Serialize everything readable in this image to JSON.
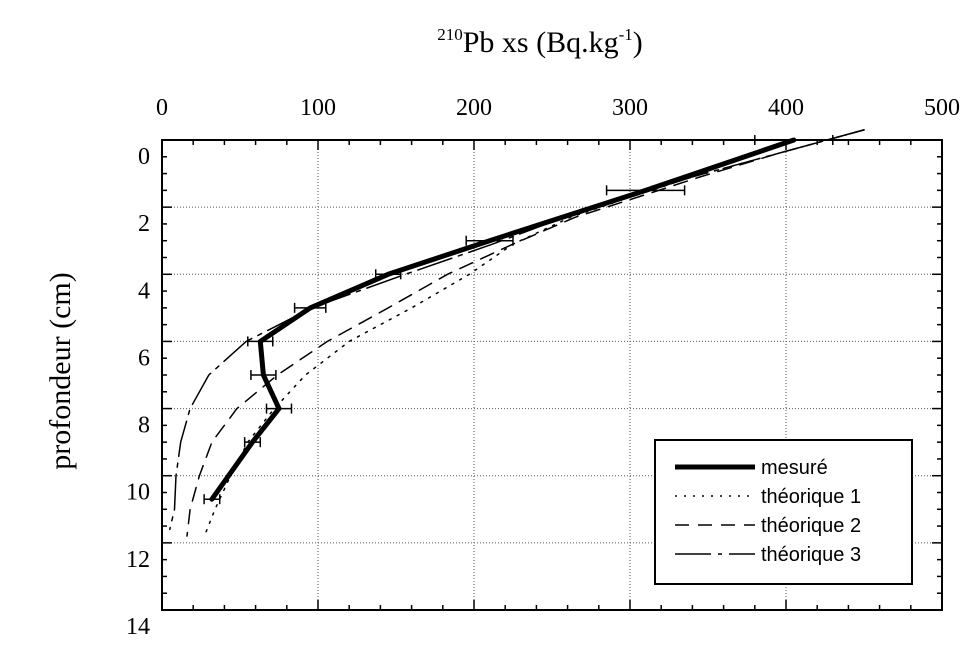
{
  "chart_data": {
    "type": "line",
    "title_iso": "210",
    "title_main": "Pb xs (Bq.kg",
    "title_unit_exp": "-1",
    "title_close": ")",
    "ylabel": "profondeur (cm)",
    "x_axis_position": "top",
    "y_axis_inverted": true,
    "xlim": [
      0,
      500
    ],
    "ylim": [
      0,
      14
    ],
    "xticks": [
      0,
      100,
      200,
      300,
      400,
      500
    ],
    "yticks": [
      0,
      2,
      4,
      6,
      8,
      10,
      12,
      14
    ],
    "grid": true,
    "legend_position": "bottom-right",
    "series": [
      {
        "name": "mesuré",
        "style": "solid-thick",
        "color": "#000000",
        "x": [
          405,
          310,
          210,
          145,
          95,
          63,
          65,
          75,
          58,
          32
        ],
        "y": [
          0,
          1.5,
          3,
          4,
          5,
          6,
          7,
          8,
          9,
          10.7
        ],
        "xerr": [
          25,
          25,
          15,
          8,
          10,
          8,
          8,
          8,
          5,
          5
        ]
      },
      {
        "name": "théorique 1",
        "style": "dotted",
        "color": "#000000",
        "x": [
          450,
          395,
          340,
          300,
          262,
          225,
          197,
          160,
          120,
          92,
          72,
          55,
          44,
          34,
          28
        ],
        "y": [
          -0.3,
          0.4,
          1.1,
          1.7,
          2.3,
          3.1,
          4,
          5,
          6,
          7,
          8,
          9,
          10,
          11,
          11.7
        ]
      },
      {
        "name": "théorique 2",
        "style": "dashed",
        "color": "#000000",
        "x": [
          450,
          395,
          345,
          305,
          265,
          225,
          183,
          145,
          106,
          74,
          48,
          32,
          24,
          18,
          16
        ],
        "y": [
          -0.3,
          0.4,
          1.1,
          1.7,
          2.3,
          3.1,
          4,
          5,
          6,
          7,
          8,
          9,
          10,
          11,
          11.8
        ]
      },
      {
        "name": "théorique 3",
        "style": "long-dash",
        "color": "#000000",
        "x": [
          450,
          395,
          340,
          300,
          258,
          212,
          156,
          96,
          54,
          30,
          18,
          12,
          9,
          8,
          5
        ],
        "y": [
          -0.3,
          0.4,
          1.1,
          1.7,
          2.3,
          3.1,
          4,
          5,
          6,
          7,
          8,
          9,
          10,
          11,
          11.6
        ]
      }
    ]
  }
}
